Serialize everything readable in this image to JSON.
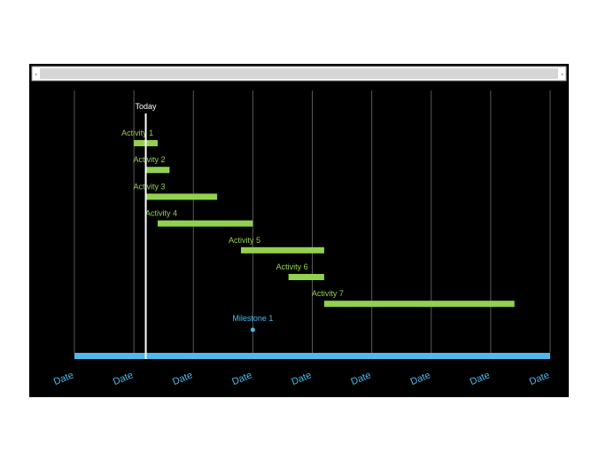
{
  "chart_data": {
    "type": "gantt",
    "title": "",
    "colors": {
      "background": "#000000",
      "activity_bar": "#92d050",
      "activity_label": "#92d050",
      "timeline_axis": "#4fb8ec",
      "date_label": "#4fb8ec",
      "milestone": "#4fb8ec",
      "today_line": "#ffffff",
      "gridline": "#595959"
    },
    "x_axis": {
      "tick_labels": [
        "Date",
        "Date",
        "Date",
        "Date",
        "Date",
        "Date",
        "Date",
        "Date",
        "Date"
      ],
      "range": [
        0,
        8
      ],
      "grid": true
    },
    "today": {
      "label": "Today",
      "x": 1.2
    },
    "activities": [
      {
        "label": "Activity 1",
        "start": 1.0,
        "end": 1.4
      },
      {
        "label": "Activity 2",
        "start": 1.2,
        "end": 1.6
      },
      {
        "label": "Activity 3",
        "start": 1.2,
        "end": 2.4
      },
      {
        "label": "Activity 4",
        "start": 1.4,
        "end": 3.0
      },
      {
        "label": "Activity 5",
        "start": 2.8,
        "end": 4.2
      },
      {
        "label": "Activity 6",
        "start": 3.6,
        "end": 4.2
      },
      {
        "label": "Activity 7",
        "start": 4.2,
        "end": 7.4
      }
    ],
    "milestones": [
      {
        "label": "Milestone 1",
        "x": 3.0
      }
    ]
  },
  "scrollbar": {
    "left_arrow_icon": "left-arrow-icon",
    "right_arrow_icon": "right-arrow-icon"
  }
}
